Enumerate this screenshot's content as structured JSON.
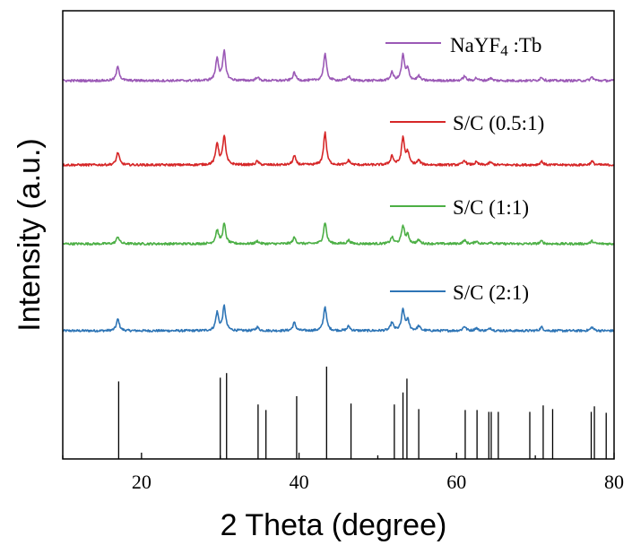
{
  "chart_data": {
    "type": "line",
    "xlabel": "2  Theta (degree)",
    "ylabel": "Intensity (a.u.)",
    "xlim": [
      10,
      80
    ],
    "xticks": [
      20,
      40,
      60,
      80
    ],
    "grid": false,
    "legend_placement": "right, one entry beside each curve",
    "series": [
      {
        "name": "S/C (2:1)",
        "color": "#2e75b6",
        "peaks": [
          {
            "x": 17.0,
            "y": 0.13
          },
          {
            "x": 29.6,
            "y": 0.2
          },
          {
            "x": 30.5,
            "y": 0.27
          },
          {
            "x": 34.7,
            "y": 0.04
          },
          {
            "x": 39.4,
            "y": 0.09
          },
          {
            "x": 43.3,
            "y": 0.27
          },
          {
            "x": 46.3,
            "y": 0.05
          },
          {
            "x": 51.8,
            "y": 0.09
          },
          {
            "x": 53.2,
            "y": 0.23
          },
          {
            "x": 53.8,
            "y": 0.11
          },
          {
            "x": 55.2,
            "y": 0.05
          },
          {
            "x": 61.0,
            "y": 0.05
          },
          {
            "x": 62.5,
            "y": 0.03
          },
          {
            "x": 64.3,
            "y": 0.03
          },
          {
            "x": 70.8,
            "y": 0.04
          },
          {
            "x": 77.2,
            "y": 0.04
          }
        ]
      },
      {
        "name": "S/C (1:1)",
        "color": "#4caf45",
        "peaks": [
          {
            "x": 17.0,
            "y": 0.08
          },
          {
            "x": 29.6,
            "y": 0.15
          },
          {
            "x": 30.5,
            "y": 0.22
          },
          {
            "x": 34.7,
            "y": 0.03
          },
          {
            "x": 39.4,
            "y": 0.07
          },
          {
            "x": 43.3,
            "y": 0.24
          },
          {
            "x": 46.3,
            "y": 0.04
          },
          {
            "x": 51.8,
            "y": 0.07
          },
          {
            "x": 53.2,
            "y": 0.2
          },
          {
            "x": 53.8,
            "y": 0.09
          },
          {
            "x": 55.2,
            "y": 0.04
          },
          {
            "x": 61.0,
            "y": 0.04
          },
          {
            "x": 62.5,
            "y": 0.03
          },
          {
            "x": 64.3,
            "y": 0.02
          },
          {
            "x": 70.8,
            "y": 0.03
          },
          {
            "x": 77.2,
            "y": 0.03
          }
        ]
      },
      {
        "name": "S/C (0.5:1)",
        "color": "#d62728",
        "peaks": [
          {
            "x": 17.0,
            "y": 0.14
          },
          {
            "x": 29.6,
            "y": 0.24
          },
          {
            "x": 30.5,
            "y": 0.32
          },
          {
            "x": 34.7,
            "y": 0.04
          },
          {
            "x": 39.4,
            "y": 0.1
          },
          {
            "x": 43.3,
            "y": 0.36
          },
          {
            "x": 46.3,
            "y": 0.05
          },
          {
            "x": 51.8,
            "y": 0.1
          },
          {
            "x": 53.2,
            "y": 0.3
          },
          {
            "x": 53.8,
            "y": 0.13
          },
          {
            "x": 55.2,
            "y": 0.05
          },
          {
            "x": 61.0,
            "y": 0.05
          },
          {
            "x": 62.5,
            "y": 0.03
          },
          {
            "x": 64.3,
            "y": 0.03
          },
          {
            "x": 70.8,
            "y": 0.04
          },
          {
            "x": 77.2,
            "y": 0.04
          }
        ]
      },
      {
        "name": "NaYF4 :Tb",
        "color": "#9b59b6",
        "peaks": [
          {
            "x": 17.0,
            "y": 0.16
          },
          {
            "x": 29.6,
            "y": 0.25
          },
          {
            "x": 30.5,
            "y": 0.32
          },
          {
            "x": 34.7,
            "y": 0.04
          },
          {
            "x": 39.4,
            "y": 0.09
          },
          {
            "x": 43.3,
            "y": 0.3
          },
          {
            "x": 46.3,
            "y": 0.05
          },
          {
            "x": 51.8,
            "y": 0.09
          },
          {
            "x": 53.2,
            "y": 0.28
          },
          {
            "x": 53.8,
            "y": 0.12
          },
          {
            "x": 55.2,
            "y": 0.05
          },
          {
            "x": 61.0,
            "y": 0.05
          },
          {
            "x": 62.5,
            "y": 0.03
          },
          {
            "x": 64.3,
            "y": 0.03
          },
          {
            "x": 70.8,
            "y": 0.04
          },
          {
            "x": 77.2,
            "y": 0.04
          }
        ]
      }
    ],
    "reference": {
      "color": "#000000",
      "lines": [
        {
          "x": 17.1,
          "y": 0.84
        },
        {
          "x": 30.0,
          "y": 0.88
        },
        {
          "x": 30.8,
          "y": 0.93
        },
        {
          "x": 34.8,
          "y": 0.59
        },
        {
          "x": 35.8,
          "y": 0.53
        },
        {
          "x": 39.7,
          "y": 0.68
        },
        {
          "x": 43.5,
          "y": 1.0
        },
        {
          "x": 46.6,
          "y": 0.6
        },
        {
          "x": 52.1,
          "y": 0.59
        },
        {
          "x": 53.2,
          "y": 0.72
        },
        {
          "x": 53.7,
          "y": 0.87
        },
        {
          "x": 55.2,
          "y": 0.54
        },
        {
          "x": 61.1,
          "y": 0.53
        },
        {
          "x": 62.6,
          "y": 0.53
        },
        {
          "x": 64.1,
          "y": 0.51
        },
        {
          "x": 64.4,
          "y": 0.51
        },
        {
          "x": 65.3,
          "y": 0.51
        },
        {
          "x": 69.3,
          "y": 0.51
        },
        {
          "x": 71.0,
          "y": 0.58
        },
        {
          "x": 72.2,
          "y": 0.54
        },
        {
          "x": 77.1,
          "y": 0.51
        },
        {
          "x": 77.5,
          "y": 0.57
        },
        {
          "x": 79.0,
          "y": 0.5
        }
      ]
    }
  }
}
